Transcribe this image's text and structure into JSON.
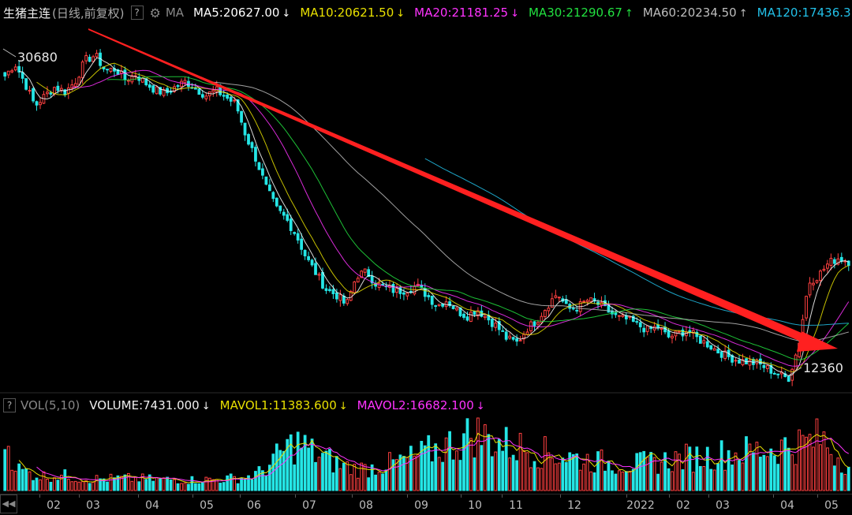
{
  "header": {
    "title": "生猪主连",
    "subtitle": "(日线,前复权)",
    "help": "?",
    "indicator": "MA",
    "ma": [
      {
        "label": "MA5:20627.00",
        "dir": "↓",
        "color": "#ffffff"
      },
      {
        "label": "MA10:20621.50",
        "dir": "↓",
        "color": "#e8e000"
      },
      {
        "label": "MA20:21181.25",
        "dir": "↓",
        "color": "#ff33ff"
      },
      {
        "label": "MA30:21290.67",
        "dir": "↑",
        "color": "#22e040"
      },
      {
        "label": "MA60:20234.50",
        "dir": "↑",
        "color": "#bdbdbd"
      },
      {
        "label": "MA120:17436.3",
        "dir": "",
        "color": "#22c0e8"
      }
    ]
  },
  "volume_header": {
    "help": "?",
    "indicator": "VOL(5,10)",
    "volume": "VOLUME:7431.000",
    "volume_dir": "↓",
    "mavol1": "MAVOL1:11383.600",
    "mavol1_dir": "↓",
    "mavol2": "MAVOL2:16682.100",
    "mavol2_dir": "↓"
  },
  "annotations": {
    "high": "30680",
    "low": "12360"
  },
  "nav": {
    "scroll_left": "◀◀"
  },
  "chart_data": {
    "type": "candlestick",
    "x_ticks": [
      "02",
      "03",
      "04",
      "05",
      "06",
      "07",
      "08",
      "09",
      "10",
      "11",
      "12",
      "2022",
      "02",
      "03",
      "04",
      "05"
    ],
    "price_high": 30680,
    "price_low": 12360,
    "colors": {
      "up": "#ff4040",
      "down": "#25e6e6",
      "ma5": "#ffffff",
      "ma10": "#e8e000",
      "ma20": "#ff33ff",
      "ma30": "#22e040",
      "ma60": "#bdbdbd",
      "ma120": "#22c0e8",
      "trend": "#ff2020"
    },
    "price_path": [
      29500,
      30200,
      29100,
      27800,
      28400,
      28900,
      28600,
      29200,
      30400,
      30680,
      29800,
      29900,
      29300,
      29600,
      29100,
      28700,
      28500,
      28900,
      29200,
      28800,
      28400,
      28700,
      28300,
      27900,
      26100,
      24800,
      23200,
      22000,
      21400,
      20500,
      19200,
      18300,
      17400,
      17100,
      16500,
      18200,
      18400,
      17700,
      17500,
      17300,
      17400,
      17600,
      17100,
      16500,
      16800,
      16200,
      15900,
      16300,
      15800,
      15300,
      14600,
      14400,
      15200,
      15700,
      16500,
      17200,
      16300,
      16400,
      16800,
      16600,
      16200,
      15800,
      15700,
      15400,
      15100,
      15300,
      14700,
      14900,
      15100,
      14600,
      14300,
      13900,
      13600,
      13400,
      13300,
      13200,
      12900,
      12600,
      12360,
      14200,
      17800,
      18200,
      18900,
      19200,
      19000
    ],
    "volume_path": [
      16000,
      6200,
      5000,
      4200,
      4600,
      4100,
      3600,
      3400,
      3500,
      3600,
      3500,
      3300,
      3200,
      3300,
      3100,
      3200,
      3300,
      3600,
      3900,
      5200,
      8600,
      12600,
      14200,
      11200,
      9400,
      7600,
      6600,
      6400,
      7400,
      8100,
      9200,
      10400,
      12100,
      13400,
      14800,
      17200,
      15600,
      14200,
      13100,
      12600,
      11400,
      10900,
      10200,
      9300,
      8800,
      8300,
      8100,
      7900,
      8200,
      8600,
      9300,
      9800,
      10100,
      10600,
      11100,
      11400,
      11900,
      12400,
      13100,
      13700,
      14400,
      15600,
      11000,
      7431
    ]
  }
}
